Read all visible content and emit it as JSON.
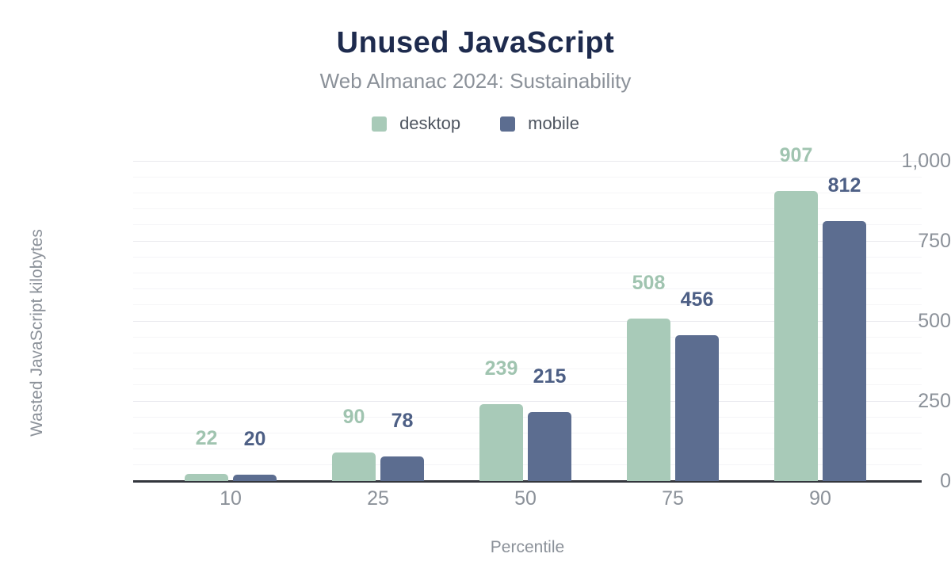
{
  "chart_data": {
    "type": "bar",
    "title": "Unused JavaScript",
    "subtitle": "Web Almanac 2024: Sustainability",
    "categories": [
      "10",
      "25",
      "50",
      "75",
      "90"
    ],
    "series": [
      {
        "name": "desktop",
        "color": "#a8cab8",
        "label_color": "#a0c4b0",
        "values": [
          22,
          90,
          239,
          508,
          907
        ]
      },
      {
        "name": "mobile",
        "color": "#5c6d90",
        "label_color": "#4d5f85",
        "values": [
          20,
          78,
          215,
          456,
          812
        ]
      }
    ],
    "xlabel": "Percentile",
    "ylabel": "Wasted JavaScript kilobytes",
    "ylim": [
      0,
      1000
    ],
    "yticks": [
      0,
      250,
      500,
      750,
      1000
    ],
    "ytick_labels": [
      "0",
      "250",
      "500",
      "750",
      "1,000"
    ],
    "minor_grid_step": 50,
    "major_grid_step": 250,
    "grid": true,
    "legend_position": "top",
    "colors": {
      "title": "#1e2b4e",
      "subtitle": "#8b9199",
      "axis_text": "#8b9199",
      "legend_text": "#4d545f",
      "axis_line": "#33363d",
      "gridline_major": "#e9e9ee",
      "gridline_minor": "#f5f5f7",
      "background": "#ffffff"
    }
  }
}
